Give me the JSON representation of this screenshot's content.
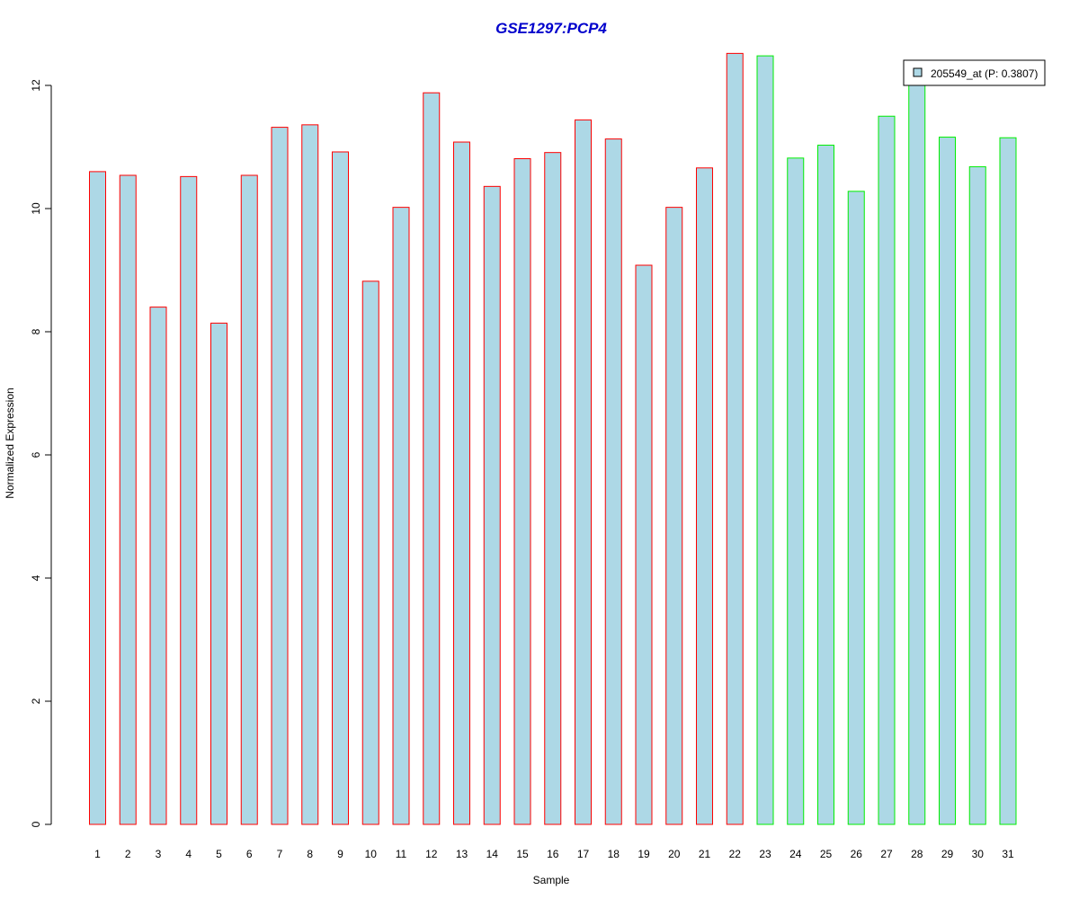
{
  "chart_data": {
    "type": "bar",
    "title": "GSE1297:PCP4",
    "xlabel": "Sample",
    "ylabel": "Normalized Expression",
    "ylim": [
      0,
      12.5
    ],
    "yticks": [
      0,
      2,
      4,
      6,
      8,
      10,
      12
    ],
    "categories": [
      "1",
      "2",
      "3",
      "4",
      "5",
      "6",
      "7",
      "8",
      "9",
      "10",
      "11",
      "12",
      "13",
      "14",
      "15",
      "16",
      "17",
      "18",
      "19",
      "20",
      "21",
      "22",
      "23",
      "24",
      "25",
      "26",
      "27",
      "28",
      "29",
      "30",
      "31"
    ],
    "series": [
      {
        "name": "205549_at (P: 0.3807)",
        "values": [
          10.6,
          10.54,
          8.4,
          10.52,
          8.14,
          10.54,
          11.32,
          11.36,
          10.92,
          8.82,
          10.02,
          11.88,
          11.08,
          10.36,
          10.81,
          10.91,
          11.44,
          11.13,
          9.08,
          10.02,
          10.66,
          12.52,
          12.48,
          10.82,
          11.03,
          10.28,
          11.5,
          12.1,
          11.16,
          10.68,
          11.15
        ]
      }
    ],
    "group_colors": [
      "#ff0000",
      "#ff0000",
      "#ff0000",
      "#ff0000",
      "#ff0000",
      "#ff0000",
      "#ff0000",
      "#ff0000",
      "#ff0000",
      "#ff0000",
      "#ff0000",
      "#ff0000",
      "#ff0000",
      "#ff0000",
      "#ff0000",
      "#ff0000",
      "#ff0000",
      "#ff0000",
      "#ff0000",
      "#ff0000",
      "#ff0000",
      "#ff0000",
      "#00ee00",
      "#00ee00",
      "#00ee00",
      "#00ee00",
      "#00ee00",
      "#00ee00",
      "#00ee00",
      "#00ee00",
      "#00ee00"
    ],
    "bar_fill": "#add8e6",
    "title_color": "#0000cc",
    "legend_position": "top-right",
    "grid": false
  }
}
